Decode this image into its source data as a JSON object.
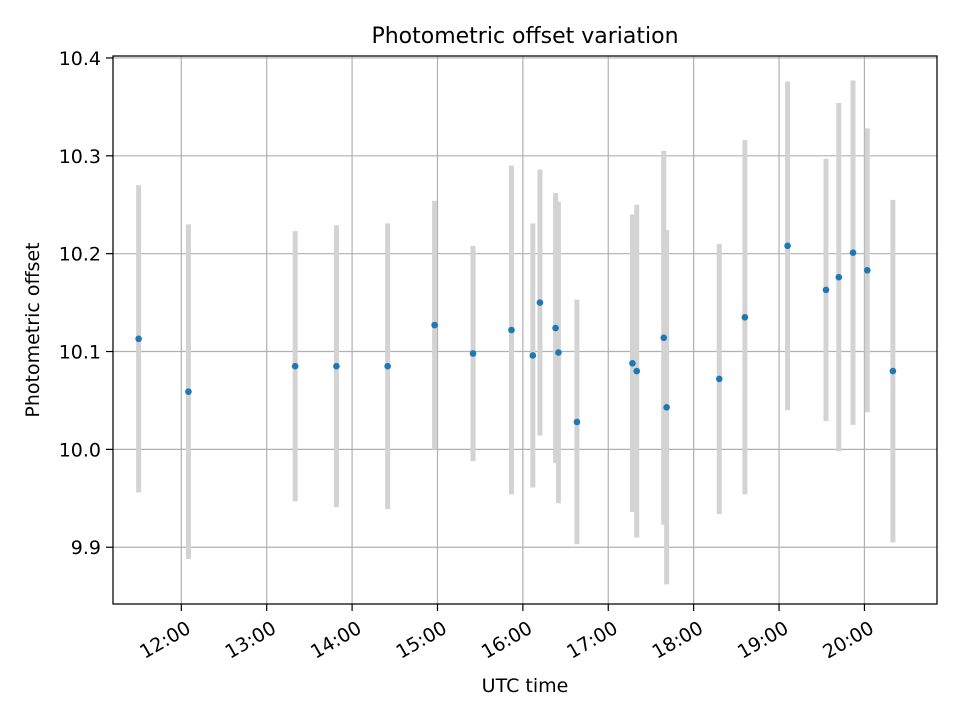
{
  "chart_data": {
    "type": "scatter",
    "title": "Photometric offset variation",
    "xlabel": "UTC time",
    "ylabel": "Photometric offset",
    "x_tick_labels": [
      "12:00",
      "13:00",
      "14:00",
      "15:00",
      "16:00",
      "17:00",
      "18:00",
      "19:00",
      "20:00"
    ],
    "y_tick_labels": [
      "9.9",
      "10.0",
      "10.1",
      "10.2",
      "10.3",
      "10.4"
    ],
    "y_ticks": [
      9.9,
      10.0,
      10.1,
      10.2,
      10.3,
      10.4
    ],
    "ylim": [
      9.842,
      10.402
    ],
    "xlim": [
      "11:12",
      "20:51"
    ],
    "grid": true,
    "colors": {
      "points": "#1f77b4",
      "errorbars": "#d3d3d3",
      "grid": "#b0b0b0",
      "axes": "#000000"
    },
    "points": [
      {
        "x": "11:30",
        "y": 10.113,
        "err": 0.157
      },
      {
        "x": "12:05",
        "y": 10.059,
        "err": 0.171
      },
      {
        "x": "13:20",
        "y": 10.085,
        "err": 0.138
      },
      {
        "x": "13:49",
        "y": 10.085,
        "err": 0.144
      },
      {
        "x": "14:25",
        "y": 10.085,
        "err": 0.146
      },
      {
        "x": "14:58",
        "y": 10.127,
        "err": 0.127
      },
      {
        "x": "15:25",
        "y": 10.098,
        "err": 0.11
      },
      {
        "x": "15:52",
        "y": 10.122,
        "err": 0.168
      },
      {
        "x": "16:07",
        "y": 10.096,
        "err": 0.135
      },
      {
        "x": "16:12",
        "y": 10.15,
        "err": 0.136
      },
      {
        "x": "16:23",
        "y": 10.124,
        "err": 0.138
      },
      {
        "x": "16:25",
        "y": 10.099,
        "err": 0.154
      },
      {
        "x": "16:38",
        "y": 10.028,
        "err": 0.125
      },
      {
        "x": "17:17",
        "y": 10.088,
        "err": 0.152
      },
      {
        "x": "17:20",
        "y": 10.08,
        "err": 0.17
      },
      {
        "x": "17:39",
        "y": 10.114,
        "err": 0.191
      },
      {
        "x": "17:41",
        "y": 10.043,
        "err": 0.181
      },
      {
        "x": "18:18",
        "y": 10.072,
        "err": 0.138
      },
      {
        "x": "18:36",
        "y": 10.135,
        "err": 0.181
      },
      {
        "x": "19:06",
        "y": 10.208,
        "err": 0.168
      },
      {
        "x": "19:33",
        "y": 10.163,
        "err": 0.134
      },
      {
        "x": "19:42",
        "y": 10.176,
        "err": 0.178
      },
      {
        "x": "19:52",
        "y": 10.201,
        "err": 0.176
      },
      {
        "x": "20:02",
        "y": 10.183,
        "err": 0.145
      },
      {
        "x": "20:20",
        "y": 10.08,
        "err": 0.175
      }
    ]
  }
}
